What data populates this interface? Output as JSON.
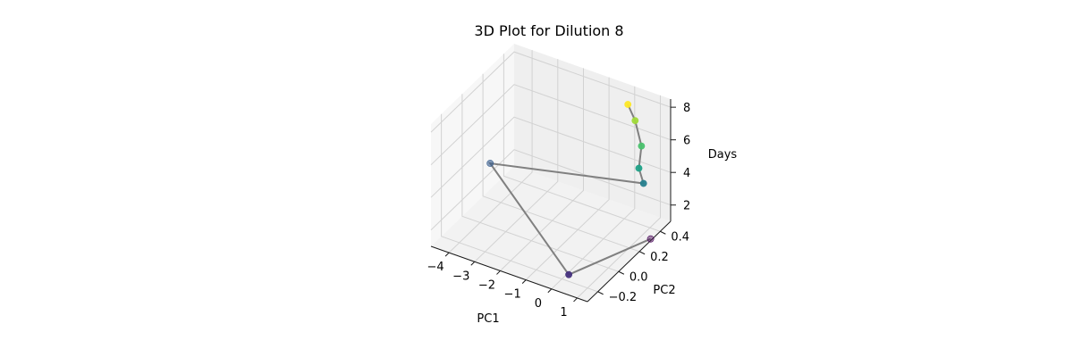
{
  "chart_data": {
    "type": "scatter",
    "projection": "3d",
    "title": "3D Plot for Dilution 8",
    "xlabel": "PC1",
    "ylabel": "PC2",
    "zlabel": "Days",
    "xlim": [
      -4.7,
      1.4
    ],
    "ylim": [
      -0.3,
      0.5
    ],
    "zlim": [
      1,
      8.5
    ],
    "xticks": [
      -4,
      -3,
      -2,
      -1,
      0,
      1
    ],
    "xtick_labels": [
      "−4",
      "−3",
      "−2",
      "−1",
      "0",
      "1"
    ],
    "yticks": [
      -0.2,
      0.0,
      0.2,
      0.4
    ],
    "ytick_labels": [
      "−0.2",
      "0.0",
      "0.2",
      "0.4"
    ],
    "zticks": [
      2,
      4,
      6,
      8
    ],
    "ztick_labels": [
      "2",
      "4",
      "6",
      "8"
    ],
    "grid": true,
    "colormap": "viridis",
    "line_color": "#808080",
    "points": [
      {
        "x": 1.35,
        "y": 0.32,
        "z": 1,
        "color": "#440154"
      },
      {
        "x": 0.55,
        "y": -0.27,
        "z": 2,
        "color": "#46327e"
      },
      {
        "x": -4.5,
        "y": 0.22,
        "z": 3,
        "color": "#365c8d"
      },
      {
        "x": 0.95,
        "y": 0.35,
        "z": 4,
        "color": "#277f8e"
      },
      {
        "x": 0.85,
        "y": 0.33,
        "z": 5,
        "color": "#1fa187"
      },
      {
        "x": 0.75,
        "y": 0.38,
        "z": 6,
        "color": "#4ac16d"
      },
      {
        "x": 0.3,
        "y": 0.43,
        "z": 7,
        "color": "#a0da39"
      },
      {
        "x": 0.1,
        "y": 0.41,
        "z": 8,
        "color": "#fde725"
      }
    ]
  }
}
